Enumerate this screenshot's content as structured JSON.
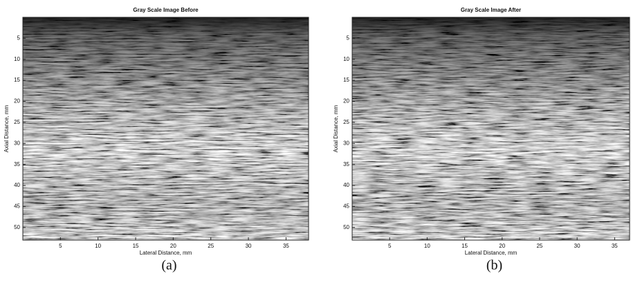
{
  "chart_data": [
    {
      "type": "image",
      "title": "Gray Scale Image Before",
      "xlabel": "Lateral Distance, mm",
      "ylabel": "Axial Distance, mm",
      "caption": "(a)",
      "xlim": [
        0,
        38
      ],
      "ylim": [
        0,
        53
      ],
      "y_inverted": true,
      "xticks": [
        5,
        10,
        15,
        20,
        25,
        30,
        35
      ],
      "yticks": [
        5,
        10,
        15,
        20,
        25,
        30,
        35,
        40,
        45,
        50
      ]
    },
    {
      "type": "image",
      "title": "Gray Scale Image After",
      "xlabel": "Lateral Distance, mm",
      "ylabel": "Axial Distance, mm",
      "caption": "(b)",
      "xlim": [
        0,
        37
      ],
      "ylim": [
        0,
        53
      ],
      "y_inverted": true,
      "xticks": [
        5,
        10,
        15,
        20,
        25,
        30,
        35
      ],
      "yticks": [
        5,
        10,
        15,
        20,
        25,
        30,
        35,
        40,
        45,
        50
      ]
    }
  ]
}
